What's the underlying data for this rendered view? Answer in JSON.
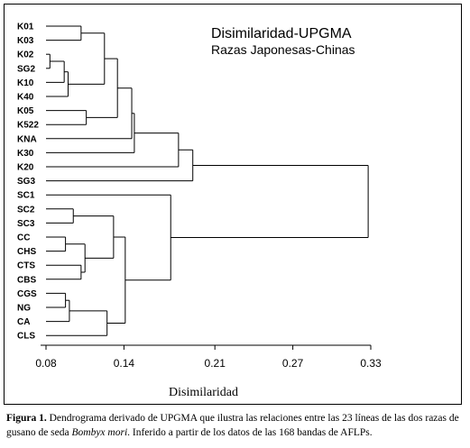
{
  "chart_data": {
    "type": "dendrogram",
    "title": "Disimilaridad-UPGMA",
    "subtitle": "Razas Japonesas-Chinas",
    "xlabel": "Disimilaridad",
    "xlim": [
      0.08,
      0.33
    ],
    "xticks": [
      "0.08",
      "0.14",
      "0.21",
      "0.27",
      "0.33"
    ],
    "leaves": [
      "K01",
      "K03",
      "K02",
      "SG2",
      "K10",
      "K40",
      "K05",
      "K522",
      "KNA",
      "K30",
      "K20",
      "SG3",
      "SC1",
      "SC2",
      "SC3",
      "CC",
      "CHS",
      "CTS",
      "CBS",
      "CGS",
      "NG",
      "CA",
      "CLS"
    ],
    "merges": [
      {
        "a": "K02",
        "b": "SG2",
        "height": 0.083
      },
      {
        "a": "K01",
        "b": "K03",
        "height": 0.107
      },
      {
        "a": "K10",
        "b": "K02+SG2",
        "height": 0.094
      },
      {
        "a": "K40",
        "b": "K10+K02+SG2",
        "height": 0.097
      },
      {
        "a": "K05",
        "b": "K522",
        "height": 0.111
      },
      {
        "a": "K01+K03",
        "b": "K40+K10+K02+SG2",
        "height": 0.125
      },
      {
        "a": "K01..K40",
        "b": "K05+K522",
        "height": 0.135
      },
      {
        "a": "K01..K522",
        "b": "KNA",
        "height": 0.146
      },
      {
        "a": "K01..KNA",
        "b": "K30",
        "height": 0.148
      },
      {
        "a": "K01..K30",
        "b": "K20",
        "height": 0.182
      },
      {
        "a": "K01..K20",
        "b": "SG3",
        "height": 0.193
      },
      {
        "a": "CC",
        "b": "CHS",
        "height": 0.095
      },
      {
        "a": "SC2",
        "b": "SC3",
        "height": 0.101
      },
      {
        "a": "CGS",
        "b": "NG",
        "height": 0.095
      },
      {
        "a": "CTS",
        "b": "CBS",
        "height": 0.107
      },
      {
        "a": "CGS+NG",
        "b": "CA",
        "height": 0.098
      },
      {
        "a": "CC+CHS",
        "b": "CTS+CBS",
        "height": 0.11
      },
      {
        "a": "SC2+SC3",
        "b": "CC..CBS",
        "height": 0.132
      },
      {
        "a": "CGS+NG+CA",
        "b": "CLS",
        "height": 0.127
      },
      {
        "a": "SC2..CBS",
        "b": "CGS..CLS",
        "height": 0.141
      },
      {
        "a": "SC1",
        "b": "SC2..CLS",
        "height": 0.176
      },
      {
        "a": "K01..SG3",
        "b": "SC1..CLS",
        "height": 0.328
      }
    ]
  },
  "caption": {
    "label": "Figura 1.",
    "text_before_italic": " Dendrograma derivado de UPGMA que ilustra las relaciones entre las 23 líneas de las dos razas de gusano de seda ",
    "italic": "Bombyx mori",
    "text_after_italic": ". Inferido a partir de los datos de las 168 bandas de AFLPs."
  }
}
